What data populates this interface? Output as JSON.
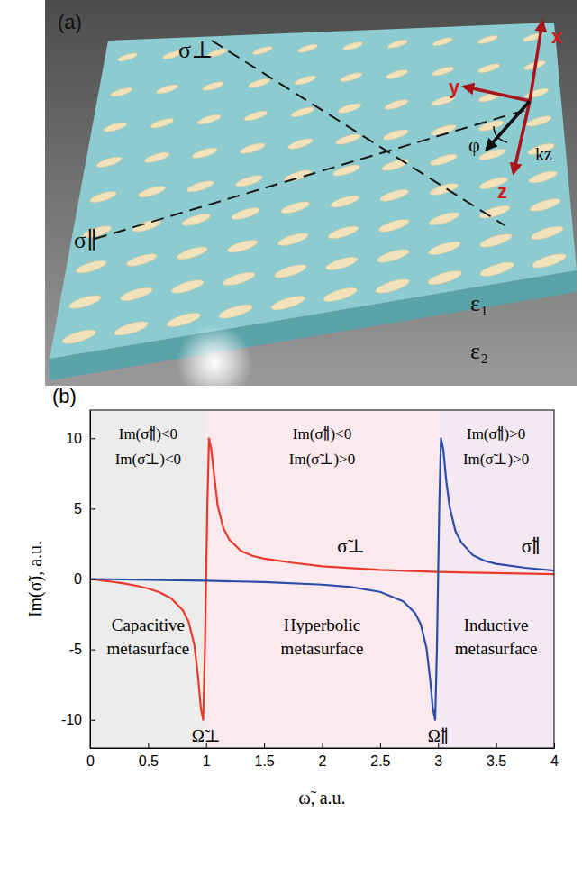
{
  "chart_data": {
    "type": "line",
    "panel_label": "(b)",
    "x_label": "ω̃, a.u.",
    "y_label": "Im(σ̃), a.u.",
    "xlim": [
      0,
      4
    ],
    "xticks": [
      0,
      0.5,
      1,
      1.5,
      2,
      2.5,
      3,
      3.5,
      4
    ],
    "ylim": [
      -12,
      12
    ],
    "yticks": [
      -10,
      -5,
      0,
      5,
      10
    ],
    "grid": false,
    "series": [
      {
        "name": "σ̃⊥",
        "color": "#e8392b",
        "x": [
          0,
          0.1,
          0.2,
          0.3,
          0.4,
          0.5,
          0.6,
          0.7,
          0.8,
          0.85,
          0.9,
          0.93,
          0.955,
          0.975,
          0.99,
          1.0,
          1.01,
          1.025,
          1.045,
          1.07,
          1.1,
          1.15,
          1.2,
          1.3,
          1.4,
          1.5,
          1.75,
          2,
          2.5,
          3,
          3.5,
          4
        ],
        "values": [
          0,
          -0.1,
          -0.21,
          -0.33,
          -0.48,
          -0.67,
          -0.94,
          -1.37,
          -2.22,
          -3.06,
          -4.74,
          -6.9,
          -9.2,
          -10,
          -5,
          0,
          5,
          10,
          9.2,
          7.3,
          5.2,
          3.6,
          2.8,
          2.0,
          1.65,
          1.45,
          1.15,
          0.9,
          0.65,
          0.5,
          0.42,
          0.35
        ]
      },
      {
        "name": "σ̃∥",
        "color": "#2a4ea6",
        "x": [
          0,
          0.5,
          1,
          1.5,
          2,
          2.25,
          2.5,
          2.7,
          2.8,
          2.85,
          2.9,
          2.93,
          2.955,
          2.975,
          2.99,
          3.0,
          3.01,
          3.025,
          3.045,
          3.07,
          3.1,
          3.15,
          3.2,
          3.3,
          3.4,
          3.5,
          3.75,
          4
        ],
        "values": [
          0,
          -0.06,
          -0.12,
          -0.22,
          -0.4,
          -0.57,
          -0.91,
          -1.58,
          -2.4,
          -3.2,
          -4.9,
          -7,
          -9.2,
          -10,
          -5,
          0,
          5,
          10,
          9.2,
          7,
          5.1,
          3.4,
          2.6,
          1.7,
          1.3,
          1.08,
          0.8,
          0.6
        ]
      }
    ],
    "regions": [
      {
        "x0": 0,
        "x1": 1,
        "color": "#ececec",
        "label": "Capacitive metasurface",
        "conditions": [
          "Im(σ̃∥)<0",
          "Im(σ̃⊥)<0"
        ]
      },
      {
        "x0": 1,
        "x1": 3,
        "color": "#fce9ee",
        "label": "Hyperbolic metasurface",
        "conditions": [
          "Im(σ̃∥)<0",
          "Im(σ̃⊥)>0"
        ]
      },
      {
        "x0": 3,
        "x1": 4,
        "color": "#f4e8f2",
        "label": "Inductive metasurface",
        "conditions": [
          "Im(σ̃∥)>0",
          "Im(σ̃⊥)>0"
        ]
      }
    ],
    "annotations": [
      {
        "text": "Ω̃⊥",
        "x": 1
      },
      {
        "text": "Ω̃∥",
        "x": 3
      }
    ]
  },
  "diagram": {
    "panel_label": "(a)",
    "sigma_perp": "σ⊥",
    "sigma_par": "σ∥",
    "axis_x": "x",
    "axis_y": "y",
    "axis_z": "z",
    "wavevector": "kz",
    "angle": "φ",
    "eps1": "ε₁",
    "eps2": "ε₂"
  }
}
